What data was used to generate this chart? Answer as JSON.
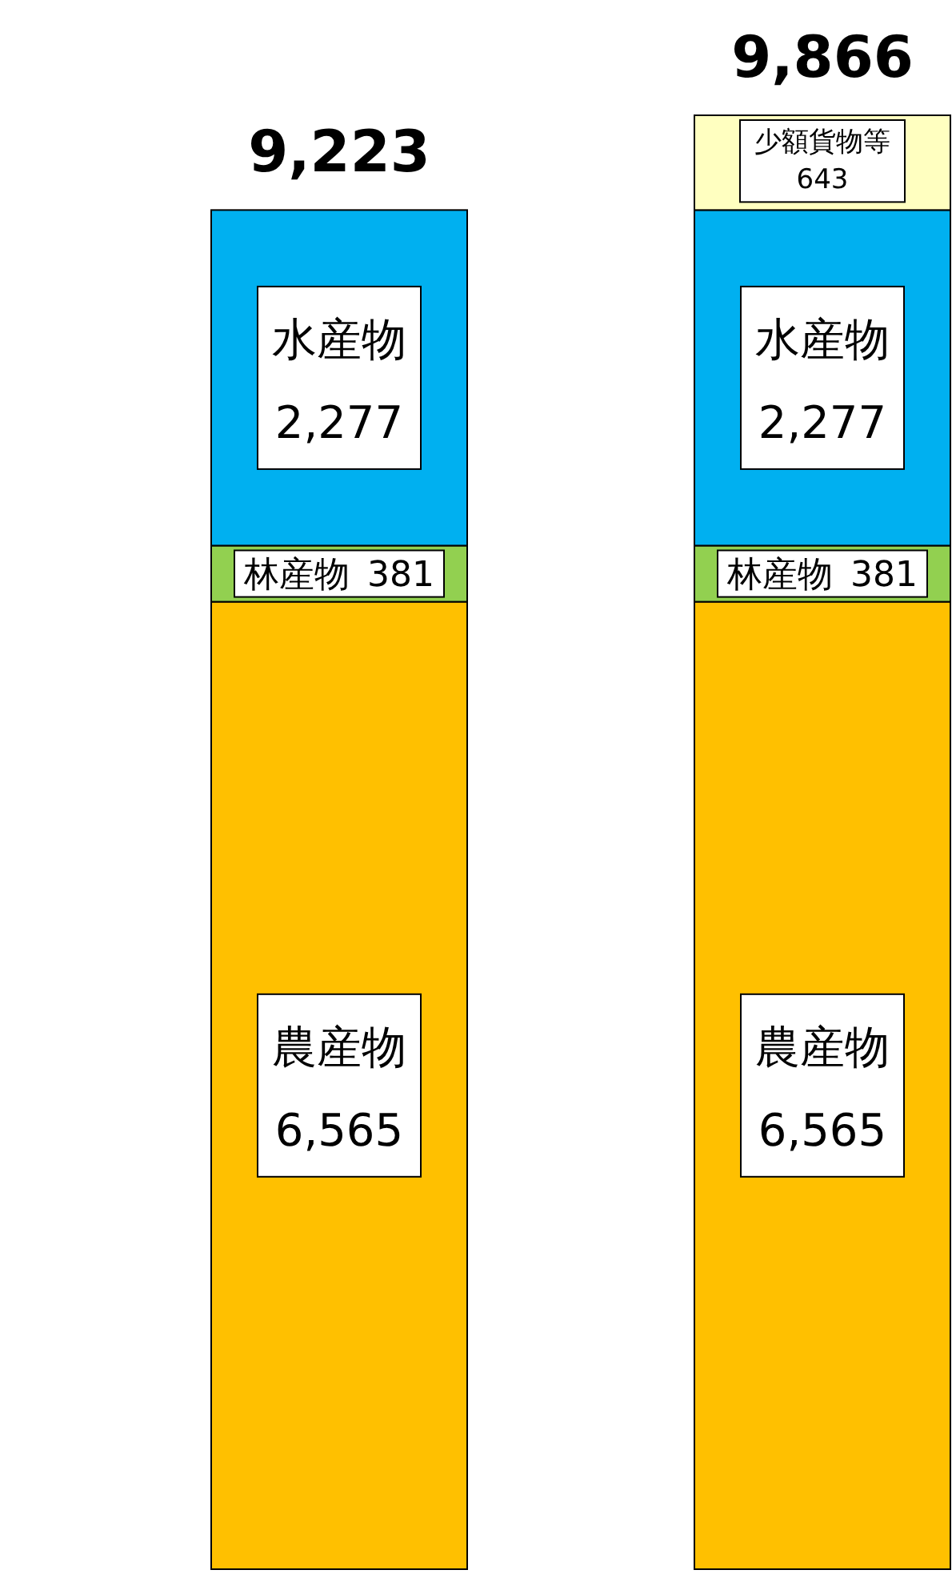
{
  "chart_data": {
    "type": "bar",
    "stacked": true,
    "categories": [
      null,
      null
    ],
    "series": [
      {
        "name": "農産物",
        "color": "#ffc000",
        "values": [
          6565,
          6565
        ],
        "value_labels": [
          "6,565",
          "6,565"
        ]
      },
      {
        "name": "林産物",
        "color": "#92d050",
        "values": [
          381,
          381
        ],
        "value_labels": [
          "381",
          "381"
        ]
      },
      {
        "name": "水産物",
        "color": "#00b0f0",
        "values": [
          2277,
          2277
        ],
        "value_labels": [
          "2,277",
          "2,277"
        ]
      },
      {
        "name": "少額貨物等",
        "color": "#ffffc0",
        "values": [
          null,
          643
        ],
        "value_labels": [
          null,
          "643"
        ]
      }
    ],
    "totals": [
      "9,223",
      "9,866"
    ]
  }
}
